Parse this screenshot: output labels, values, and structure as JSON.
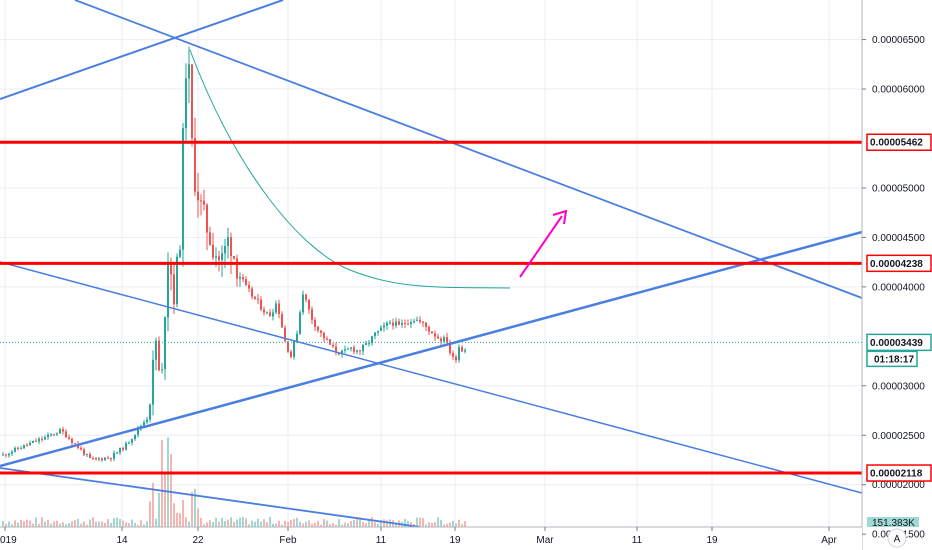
{
  "chart_data": {
    "type": "candlestick",
    "x_ticks": [
      "019",
      "14",
      "22",
      "Feb",
      "11",
      "19",
      "Mar",
      "11",
      "19",
      "Apr"
    ],
    "y_ticks": [
      "0.00006500",
      "0.00006000",
      "0.00005000",
      "0.00004500",
      "0.00004000",
      "0.00003000",
      "0.00002500",
      "0.00002000",
      "0.00001500"
    ],
    "y_tick_values": [
      6.5e-05,
      6e-05,
      5e-05,
      4.5e-05,
      4e-05,
      3e-05,
      2.5e-05,
      2e-05,
      1.5e-05
    ],
    "ylim": [
      1.34e-05,
      6.9e-05
    ],
    "grid": true,
    "horizontal_levels": [
      {
        "value": 5.462e-05,
        "label": "0.00005462",
        "color": "#ff0000"
      },
      {
        "value": 4.238e-05,
        "label": "0.00004238",
        "color": "#ff0000"
      },
      {
        "value": 2.118e-05,
        "label": "0.00002118",
        "color": "#ff0000"
      }
    ],
    "last_price": {
      "value": 3.439e-05,
      "label": "0.00003439",
      "countdown": "01:18:17",
      "color": "#26a69a"
    },
    "volume_tag": "151.383K",
    "colors": {
      "up": "#26a69a",
      "down": "#ef5350",
      "trendline": "#4a7fe0",
      "arrow": "#ff00cc",
      "curve": "#26a69a",
      "level": "#ff0000",
      "grid": "#e9edf3"
    },
    "scale_mode_label": "A"
  }
}
